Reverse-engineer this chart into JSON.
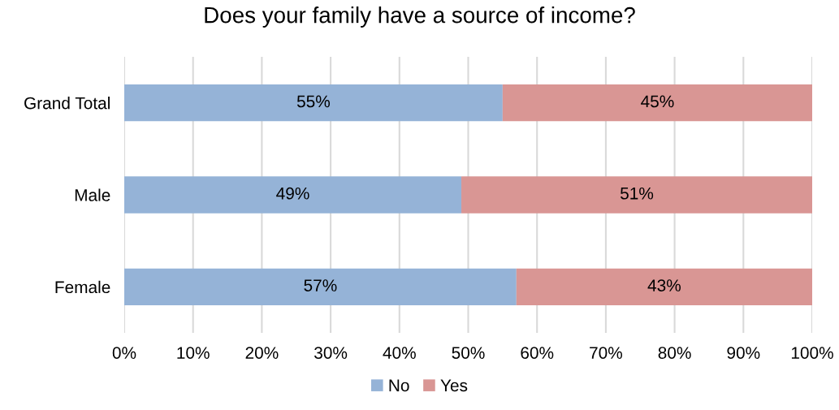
{
  "chart_data": {
    "type": "bar",
    "orientation": "horizontal",
    "stacked": true,
    "title": "Does your family have a source of income?",
    "categories": [
      "Grand Total",
      "Male",
      "Female"
    ],
    "series": [
      {
        "name": "No",
        "color": "#95b3d7",
        "values": [
          55,
          49,
          57
        ],
        "value_labels": [
          "55%",
          "49%",
          "57%"
        ]
      },
      {
        "name": "Yes",
        "color": "#d99694",
        "values": [
          45,
          51,
          43
        ],
        "value_labels": [
          "45%",
          "51%",
          "43%"
        ]
      }
    ],
    "xlim": [
      0,
      100
    ],
    "xticks": [
      {
        "value": 0,
        "label": "0%"
      },
      {
        "value": 10,
        "label": "10%"
      },
      {
        "value": 20,
        "label": "20%"
      },
      {
        "value": 30,
        "label": "30%"
      },
      {
        "value": 40,
        "label": "40%"
      },
      {
        "value": 50,
        "label": "50%"
      },
      {
        "value": 60,
        "label": "60%"
      },
      {
        "value": 70,
        "label": "70%"
      },
      {
        "value": 80,
        "label": "80%"
      },
      {
        "value": 90,
        "label": "90%"
      },
      {
        "value": 100,
        "label": "100%"
      }
    ],
    "grid": "x",
    "legend": "bottom"
  }
}
